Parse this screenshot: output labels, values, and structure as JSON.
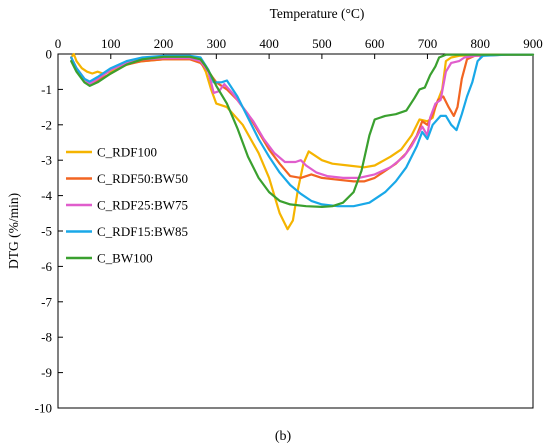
{
  "panel_label": "(b)",
  "chart_data": {
    "type": "line",
    "title": "",
    "xlabel": "Temperature (°C)",
    "ylabel": "DTG (%/min)",
    "x_axis_position": "top",
    "xlim": [
      0,
      900
    ],
    "ylim": [
      -10,
      0
    ],
    "xticks": [
      0,
      100,
      200,
      300,
      400,
      500,
      600,
      700,
      800,
      900
    ],
    "yticks": [
      0,
      -1,
      -2,
      -3,
      -4,
      -5,
      -6,
      -7,
      -8,
      -9,
      -10
    ],
    "grid": false,
    "legend_position": "left",
    "series": [
      {
        "name": "C_RDF100",
        "color": "#f5b400",
        "points": [
          [
            25,
            -0.1
          ],
          [
            30,
            0
          ],
          [
            35,
            -0.2
          ],
          [
            45,
            -0.4
          ],
          [
            55,
            -0.5
          ],
          [
            65,
            -0.55
          ],
          [
            75,
            -0.5
          ],
          [
            85,
            -0.55
          ],
          [
            100,
            -0.5
          ],
          [
            120,
            -0.35
          ],
          [
            150,
            -0.22
          ],
          [
            200,
            -0.15
          ],
          [
            250,
            -0.15
          ],
          [
            270,
            -0.2
          ],
          [
            280,
            -0.5
          ],
          [
            290,
            -1.0
          ],
          [
            300,
            -1.4
          ],
          [
            320,
            -1.5
          ],
          [
            350,
            -2.0
          ],
          [
            380,
            -2.8
          ],
          [
            400,
            -3.5
          ],
          [
            420,
            -4.5
          ],
          [
            435,
            -4.95
          ],
          [
            445,
            -4.7
          ],
          [
            455,
            -3.8
          ],
          [
            465,
            -3.1
          ],
          [
            475,
            -2.75
          ],
          [
            485,
            -2.85
          ],
          [
            500,
            -3.0
          ],
          [
            520,
            -3.1
          ],
          [
            550,
            -3.15
          ],
          [
            580,
            -3.2
          ],
          [
            600,
            -3.15
          ],
          [
            630,
            -2.9
          ],
          [
            650,
            -2.7
          ],
          [
            670,
            -2.3
          ],
          [
            685,
            -1.85
          ],
          [
            700,
            -1.9
          ],
          [
            710,
            -1.8
          ],
          [
            715,
            -1.5
          ],
          [
            720,
            -1.3
          ],
          [
            728,
            -1.0
          ],
          [
            735,
            -0.2
          ],
          [
            745,
            -0.1
          ],
          [
            760,
            -0.05
          ],
          [
            800,
            -0.02
          ],
          [
            850,
            -0.02
          ],
          [
            900,
            -0.02
          ]
        ]
      },
      {
        "name": "C_RDF50:BW50",
        "color": "#f26522",
        "points": [
          [
            25,
            -0.1
          ],
          [
            35,
            -0.4
          ],
          [
            50,
            -0.7
          ],
          [
            60,
            -0.85
          ],
          [
            75,
            -0.75
          ],
          [
            100,
            -0.55
          ],
          [
            130,
            -0.3
          ],
          [
            160,
            -0.2
          ],
          [
            200,
            -0.15
          ],
          [
            250,
            -0.15
          ],
          [
            270,
            -0.25
          ],
          [
            285,
            -0.5
          ],
          [
            300,
            -0.8
          ],
          [
            320,
            -1.0
          ],
          [
            340,
            -1.3
          ],
          [
            360,
            -1.7
          ],
          [
            380,
            -2.2
          ],
          [
            400,
            -2.7
          ],
          [
            420,
            -3.1
          ],
          [
            440,
            -3.45
          ],
          [
            460,
            -3.5
          ],
          [
            480,
            -3.4
          ],
          [
            500,
            -3.5
          ],
          [
            530,
            -3.55
          ],
          [
            560,
            -3.6
          ],
          [
            580,
            -3.6
          ],
          [
            600,
            -3.5
          ],
          [
            620,
            -3.3
          ],
          [
            640,
            -3.1
          ],
          [
            660,
            -2.8
          ],
          [
            680,
            -2.3
          ],
          [
            690,
            -1.9
          ],
          [
            700,
            -2.0
          ],
          [
            710,
            -1.7
          ],
          [
            720,
            -1.3
          ],
          [
            730,
            -1.2
          ],
          [
            740,
            -1.5
          ],
          [
            750,
            -1.75
          ],
          [
            757,
            -1.5
          ],
          [
            765,
            -0.7
          ],
          [
            775,
            -0.15
          ],
          [
            790,
            -0.05
          ],
          [
            850,
            -0.02
          ],
          [
            900,
            -0.02
          ]
        ]
      },
      {
        "name": "C_RDF25:BW75",
        "color": "#e05dcc",
        "points": [
          [
            25,
            -0.1
          ],
          [
            35,
            -0.4
          ],
          [
            50,
            -0.7
          ],
          [
            60,
            -0.85
          ],
          [
            75,
            -0.7
          ],
          [
            100,
            -0.45
          ],
          [
            130,
            -0.25
          ],
          [
            160,
            -0.15
          ],
          [
            200,
            -0.12
          ],
          [
            250,
            -0.12
          ],
          [
            270,
            -0.2
          ],
          [
            285,
            -0.5
          ],
          [
            295,
            -1.1
          ],
          [
            305,
            -1.05
          ],
          [
            315,
            -0.85
          ],
          [
            330,
            -1.1
          ],
          [
            350,
            -1.5
          ],
          [
            370,
            -1.9
          ],
          [
            390,
            -2.4
          ],
          [
            410,
            -2.8
          ],
          [
            430,
            -3.05
          ],
          [
            450,
            -3.05
          ],
          [
            460,
            -3.0
          ],
          [
            470,
            -3.15
          ],
          [
            490,
            -3.35
          ],
          [
            510,
            -3.45
          ],
          [
            540,
            -3.5
          ],
          [
            570,
            -3.5
          ],
          [
            600,
            -3.4
          ],
          [
            630,
            -3.2
          ],
          [
            655,
            -2.9
          ],
          [
            670,
            -2.6
          ],
          [
            690,
            -2.05
          ],
          [
            700,
            -2.3
          ],
          [
            705,
            -1.8
          ],
          [
            715,
            -1.4
          ],
          [
            725,
            -1.3
          ],
          [
            735,
            -0.5
          ],
          [
            745,
            -0.25
          ],
          [
            760,
            -0.2
          ],
          [
            770,
            -0.1
          ],
          [
            790,
            -0.05
          ],
          [
            850,
            -0.02
          ],
          [
            900,
            -0.02
          ]
        ]
      },
      {
        "name": "C_RDF15:BW85",
        "color": "#19a8e8",
        "points": [
          [
            25,
            -0.1
          ],
          [
            35,
            -0.4
          ],
          [
            50,
            -0.7
          ],
          [
            60,
            -0.78
          ],
          [
            75,
            -0.65
          ],
          [
            100,
            -0.4
          ],
          [
            130,
            -0.2
          ],
          [
            160,
            -0.1
          ],
          [
            200,
            -0.05
          ],
          [
            250,
            -0.05
          ],
          [
            270,
            -0.1
          ],
          [
            285,
            -0.45
          ],
          [
            295,
            -0.8
          ],
          [
            310,
            -0.8
          ],
          [
            320,
            -0.75
          ],
          [
            340,
            -1.2
          ],
          [
            360,
            -1.8
          ],
          [
            380,
            -2.4
          ],
          [
            400,
            -2.9
          ],
          [
            420,
            -3.35
          ],
          [
            440,
            -3.7
          ],
          [
            460,
            -3.95
          ],
          [
            480,
            -4.15
          ],
          [
            500,
            -4.25
          ],
          [
            530,
            -4.3
          ],
          [
            560,
            -4.3
          ],
          [
            590,
            -4.2
          ],
          [
            620,
            -3.9
          ],
          [
            640,
            -3.6
          ],
          [
            660,
            -3.2
          ],
          [
            680,
            -2.6
          ],
          [
            690,
            -2.2
          ],
          [
            700,
            -2.4
          ],
          [
            710,
            -2.0
          ],
          [
            725,
            -1.75
          ],
          [
            735,
            -1.75
          ],
          [
            745,
            -2.0
          ],
          [
            755,
            -2.15
          ],
          [
            765,
            -1.7
          ],
          [
            775,
            -1.2
          ],
          [
            785,
            -0.8
          ],
          [
            795,
            -0.2
          ],
          [
            805,
            -0.05
          ],
          [
            850,
            -0.02
          ],
          [
            900,
            -0.02
          ]
        ]
      },
      {
        "name": "C_BW100",
        "color": "#3aa02f",
        "points": [
          [
            25,
            -0.2
          ],
          [
            35,
            -0.5
          ],
          [
            50,
            -0.8
          ],
          [
            60,
            -0.9
          ],
          [
            75,
            -0.8
          ],
          [
            100,
            -0.55
          ],
          [
            130,
            -0.3
          ],
          [
            160,
            -0.15
          ],
          [
            200,
            -0.08
          ],
          [
            250,
            -0.08
          ],
          [
            270,
            -0.15
          ],
          [
            280,
            -0.35
          ],
          [
            290,
            -0.6
          ],
          [
            300,
            -0.9
          ],
          [
            320,
            -1.4
          ],
          [
            340,
            -2.1
          ],
          [
            360,
            -2.9
          ],
          [
            380,
            -3.5
          ],
          [
            400,
            -3.9
          ],
          [
            420,
            -4.15
          ],
          [
            440,
            -4.25
          ],
          [
            470,
            -4.3
          ],
          [
            500,
            -4.32
          ],
          [
            520,
            -4.3
          ],
          [
            540,
            -4.2
          ],
          [
            560,
            -3.9
          ],
          [
            575,
            -3.3
          ],
          [
            590,
            -2.3
          ],
          [
            600,
            -1.85
          ],
          [
            620,
            -1.75
          ],
          [
            640,
            -1.7
          ],
          [
            660,
            -1.6
          ],
          [
            675,
            -1.25
          ],
          [
            685,
            -1.0
          ],
          [
            695,
            -0.95
          ],
          [
            705,
            -0.6
          ],
          [
            715,
            -0.35
          ],
          [
            722,
            -0.1
          ],
          [
            735,
            -0.02
          ],
          [
            800,
            -0.02
          ],
          [
            900,
            -0.02
          ]
        ]
      }
    ]
  }
}
